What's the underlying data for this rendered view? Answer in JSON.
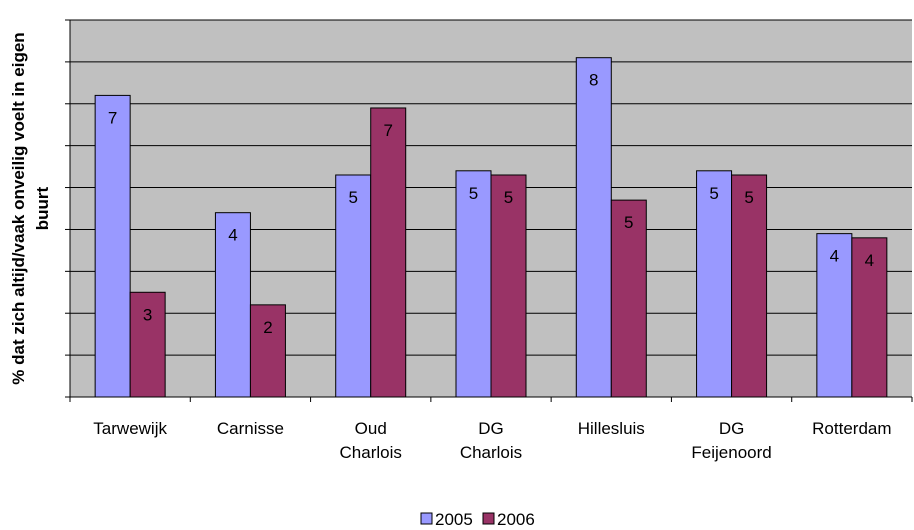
{
  "chart_data": {
    "type": "bar",
    "ylabel": "% dat zich altijd/vaak onveilig voelt in eigen buurt",
    "categories": [
      "Tarwewijk",
      "Carnisse",
      "Oud\nCharlois",
      "DG\nCharlois",
      "Hillesluis",
      "DG\nFeijenoord",
      "Rotterdam"
    ],
    "series": [
      {
        "name": "2005",
        "color": "#9999ff",
        "values": [
          7.2,
          4.4,
          5.3,
          5.4,
          8.1,
          5.4,
          3.9
        ],
        "value_labels": [
          "7",
          "4",
          "5",
          "5",
          "8",
          "5",
          "4"
        ]
      },
      {
        "name": "2006",
        "color": "#993366",
        "values": [
          2.5,
          2.2,
          6.9,
          5.3,
          4.7,
          5.3,
          3.8
        ],
        "value_labels": [
          "3",
          "2",
          "7",
          "5",
          "5",
          "5",
          "4"
        ]
      }
    ],
    "ylim": [
      0,
      9
    ],
    "yticks": [
      0,
      1,
      2,
      3,
      4,
      5,
      6,
      7,
      8,
      9
    ],
    "grid": true,
    "legend": "bottom"
  }
}
